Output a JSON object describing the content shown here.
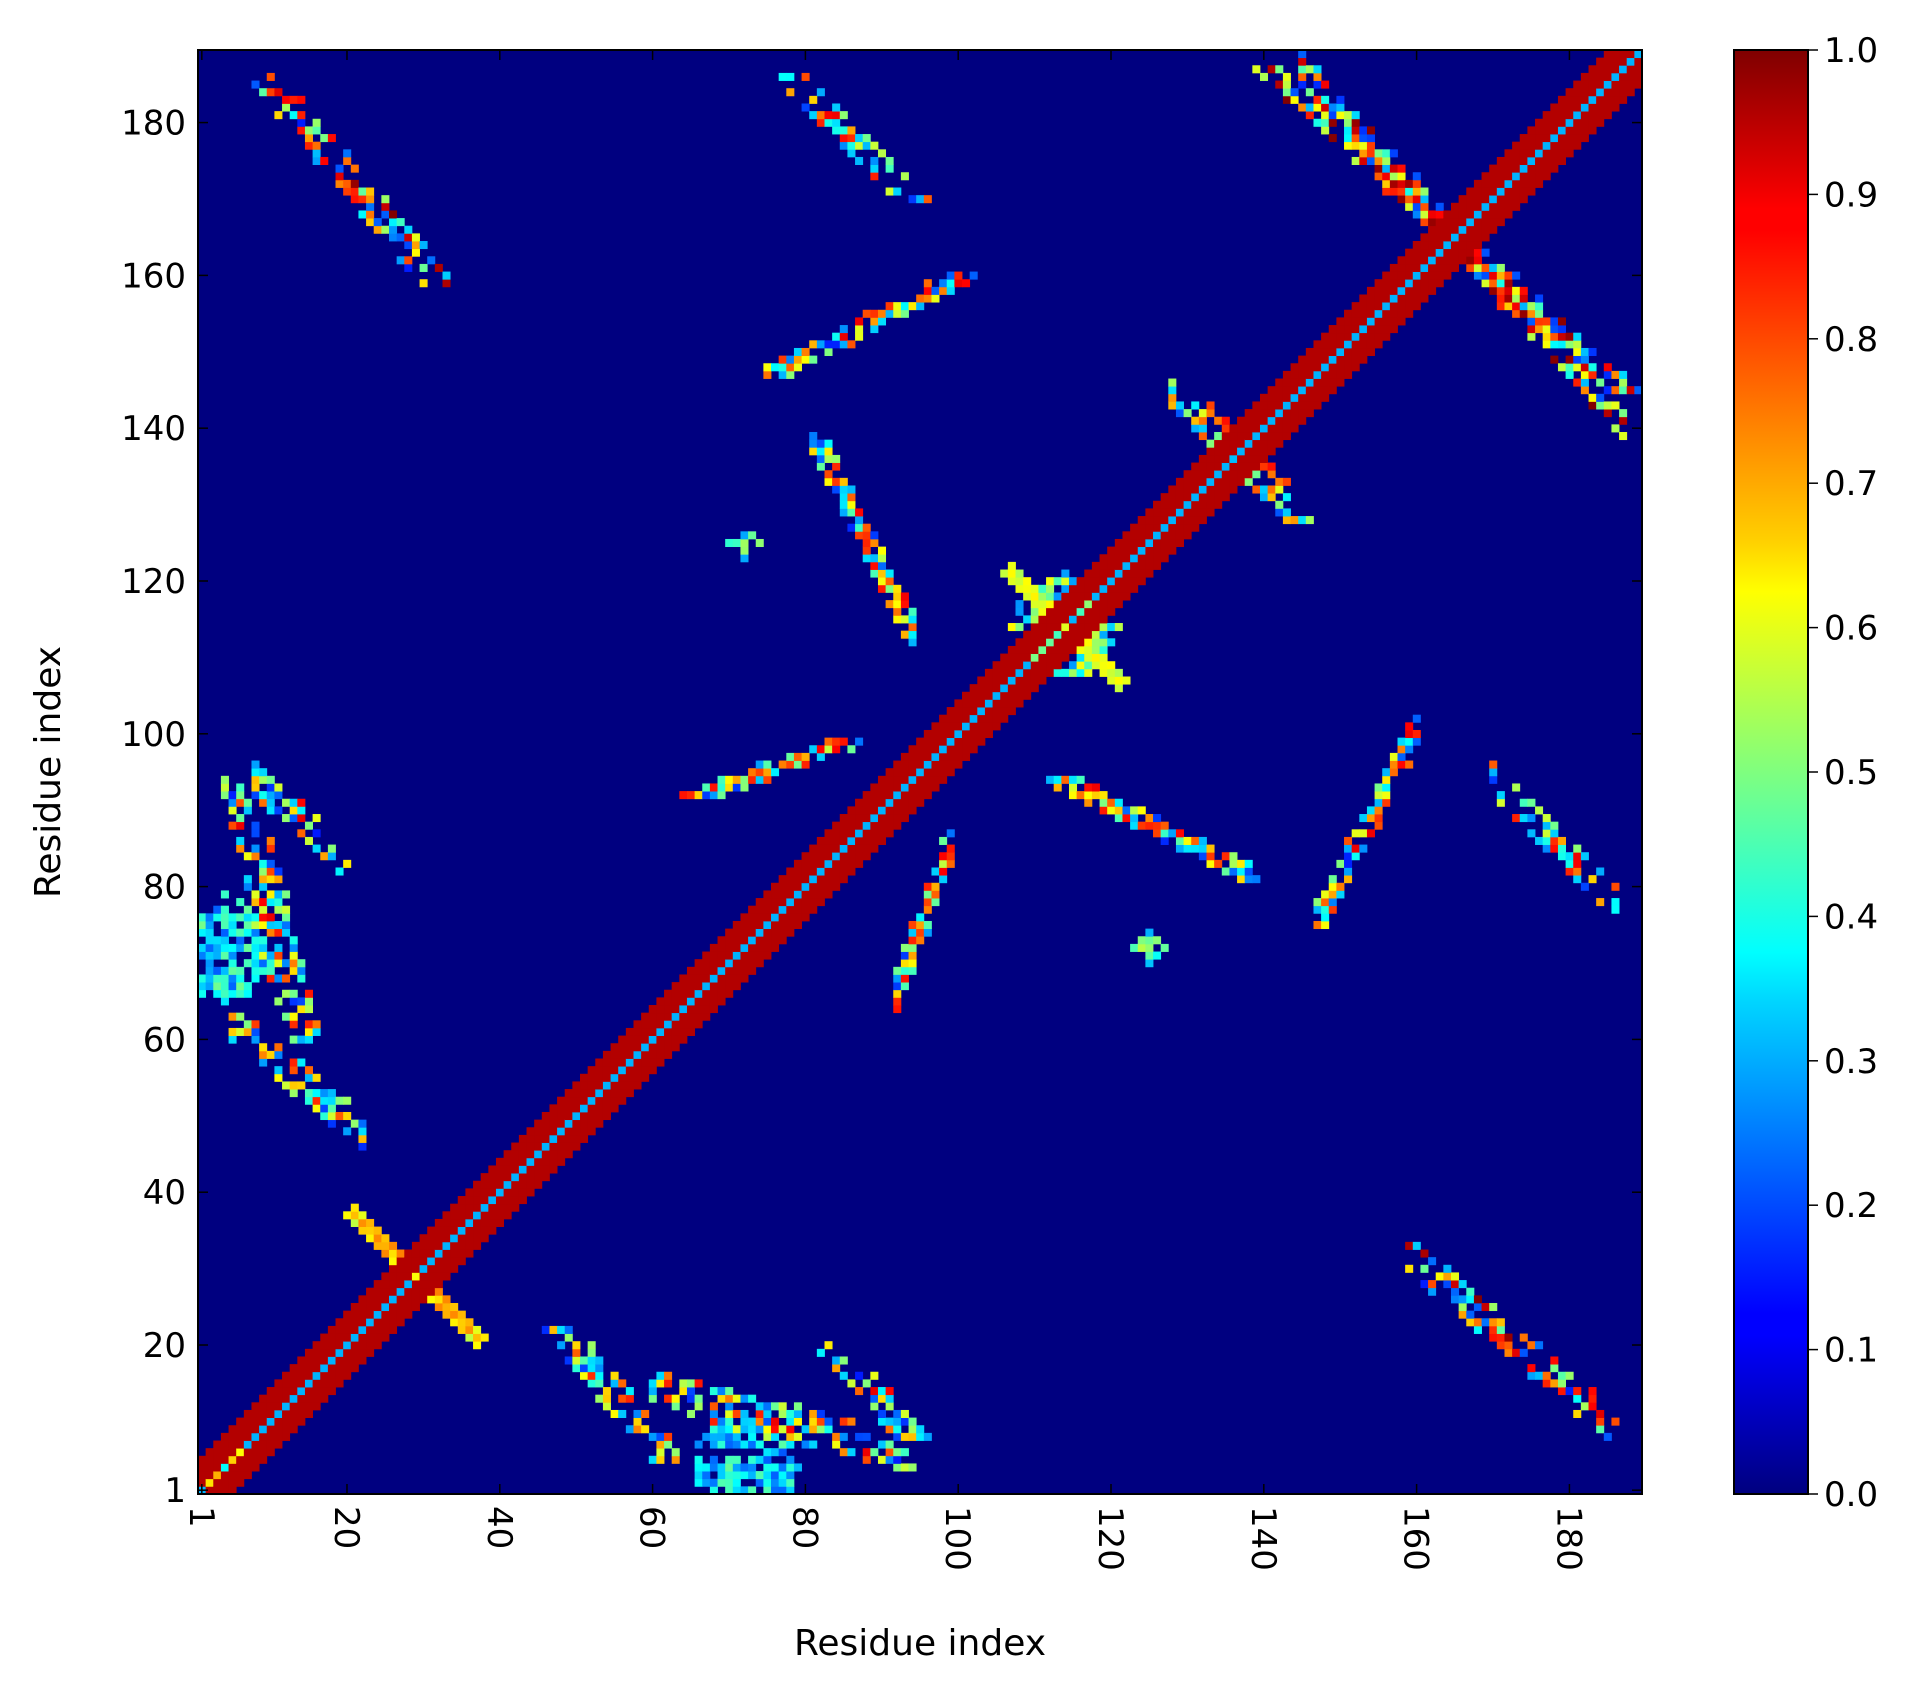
{
  "chart_data": {
    "type": "heatmap",
    "xlabel": "Residue index",
    "ylabel": "Residue index",
    "n_residues": 189,
    "x_range": [
      1,
      189
    ],
    "y_range": [
      1,
      189
    ],
    "x_ticks": [
      1,
      20,
      40,
      60,
      80,
      100,
      120,
      140,
      160,
      180
    ],
    "y_ticks": [
      1,
      20,
      40,
      60,
      80,
      100,
      120,
      140,
      160,
      180
    ],
    "x_tick_rotation": 90,
    "colormap": "jet",
    "colorbar": {
      "range": [
        0.0,
        1.0
      ],
      "ticks": [
        "0.0",
        "0.1",
        "0.2",
        "0.3",
        "0.4",
        "0.5",
        "0.6",
        "0.7",
        "0.8",
        "0.9",
        "1.0"
      ],
      "placement": "right"
    },
    "background_value": 0.0,
    "features": [
      {
        "kind": "diagonal-band",
        "half_width": 4,
        "value": 0.95
      },
      {
        "kind": "anti-diagonal",
        "center": [
          29,
          29
        ],
        "length": 8,
        "value": 0.75
      },
      {
        "kind": "anti-diagonal",
        "center": [
          114,
          114
        ],
        "length": 7,
        "value": 0.65
      },
      {
        "kind": "patch",
        "center": [
          4,
          4
        ],
        "radius": 3,
        "value": 0.55
      },
      {
        "kind": "patch",
        "center": [
          72,
          4
        ],
        "radius": 7,
        "value": 0.35
      },
      {
        "kind": "patch",
        "center": [
          4,
          72
        ],
        "radius": 7,
        "value": 0.35
      },
      {
        "kind": "patch",
        "center": [
          125,
          72
        ],
        "radius": 2,
        "value": 0.4
      },
      {
        "kind": "patch",
        "center": [
          72,
          125
        ],
        "radius": 2,
        "value": 0.4
      },
      {
        "kind": "patch",
        "center": [
          114,
          114
        ],
        "radius": 7,
        "value": 0.45
      },
      {
        "kind": "strand-pair",
        "start": [
          9,
          186
        ],
        "end": [
          32,
          159
        ],
        "width": 2,
        "value": 0.7
      },
      {
        "kind": "strand-pair",
        "start": [
          6,
          94
        ],
        "end": [
          14,
          60
        ],
        "width": 2,
        "value": 0.6
      },
      {
        "kind": "strand-pair",
        "start": [
          48,
          22
        ],
        "end": [
          62,
          5
        ],
        "width": 2,
        "value": 0.55
      },
      {
        "kind": "strand-pair",
        "start": [
          78,
          186
        ],
        "end": [
          94,
          170
        ],
        "width": 2,
        "value": 0.6
      },
      {
        "kind": "strand-pair",
        "start": [
          141,
          187
        ],
        "end": [
          188,
          144
        ],
        "width": 2,
        "value": 0.7
      },
      {
        "kind": "strand-pair",
        "start": [
          76,
          147
        ],
        "end": [
          100,
          160
        ],
        "width": 2,
        "value": 0.6
      },
      {
        "kind": "strand-pair",
        "start": [
          66,
          92
        ],
        "end": [
          86,
          99
        ],
        "width": 2,
        "value": 0.6
      },
      {
        "kind": "strand-pair",
        "start": [
          113,
          94
        ],
        "end": [
          140,
          81
        ],
        "width": 2,
        "value": 0.6
      },
      {
        "kind": "strand-pair",
        "start": [
          83,
          20
        ],
        "end": [
          94,
          8
        ],
        "width": 2,
        "value": 0.6
      },
      {
        "kind": "strand-pair",
        "start": [
          131,
          143
        ],
        "end": [
          145,
          128
        ],
        "width": 2,
        "value": 0.6
      }
    ]
  }
}
